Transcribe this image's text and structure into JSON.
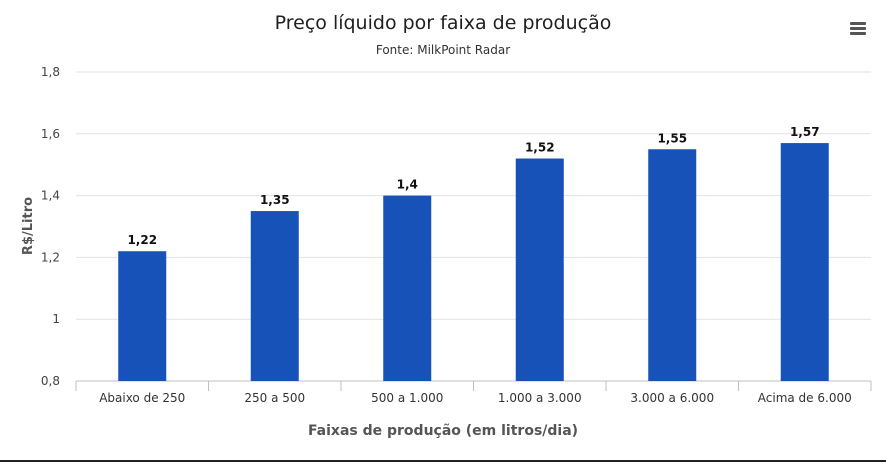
{
  "chart_data": {
    "type": "bar",
    "title": "Preço líquido por faixa de produção",
    "subtitle": "Fonte: MilkPoint Radar",
    "xlabel": "Faixas de produção (em litros/dia)",
    "ylabel": "R$/Litro",
    "categories": [
      "Abaixo de 250",
      "250 a 500",
      "500 a 1.000",
      "1.000 a 3.000",
      "3.000 a 6.000",
      "Acima de 6.000"
    ],
    "values": [
      1.22,
      1.35,
      1.4,
      1.52,
      1.55,
      1.57
    ],
    "value_labels": [
      "1,22",
      "1,35",
      "1,4",
      "1,52",
      "1,55",
      "1,57"
    ],
    "yticks": [
      0.8,
      1,
      1.2,
      1.4,
      1.6,
      1.8
    ],
    "ytick_labels": [
      "0,8",
      "1",
      "1,2",
      "1,4",
      "1,6",
      "1,8"
    ],
    "ylim": [
      0.8,
      1.8
    ],
    "grid": true,
    "legend": "none",
    "bar_color": "#1652b8",
    "grid_color": "#e2e2e2"
  },
  "menu": {
    "icon": "hamburger-menu-icon"
  }
}
